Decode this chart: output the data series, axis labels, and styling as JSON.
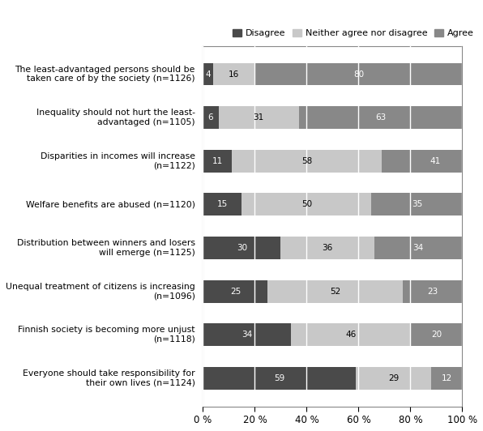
{
  "categories": [
    "The least-advantaged persons should be\ntaken care of by the society (n=1126)",
    "Inequality should not hurt the least-\nadvantaged (n=1105)",
    "Disparities in incomes will increase\n(n=1122)",
    "Welfare benefits are abused (n=1120)",
    "Distribution between winners and losers\nwill emerge (n=1125)",
    "Unequal treatment of citizens is increasing\n(n=1096)",
    "Finnish society is becoming more unjust\n(n=1118)",
    "Everyone should take responsibility for\ntheir own lives (n=1124)"
  ],
  "disagree": [
    4,
    6,
    11,
    15,
    30,
    25,
    34,
    59
  ],
  "neither": [
    16,
    31,
    58,
    50,
    36,
    52,
    46,
    29
  ],
  "agree": [
    80,
    63,
    41,
    35,
    34,
    23,
    20,
    12
  ],
  "color_disagree": "#4a4a4a",
  "color_neither": "#c8c8c8",
  "color_agree": "#888888",
  "legend_labels": [
    "Disagree",
    "Neither agree nor disagree",
    "Agree"
  ],
  "xlim": [
    0,
    100
  ],
  "xtick_labels": [
    "0 %",
    "20 %",
    "40 %",
    "60 %",
    "80 %",
    "100 %"
  ],
  "xtick_values": [
    0,
    20,
    40,
    60,
    80,
    100
  ]
}
